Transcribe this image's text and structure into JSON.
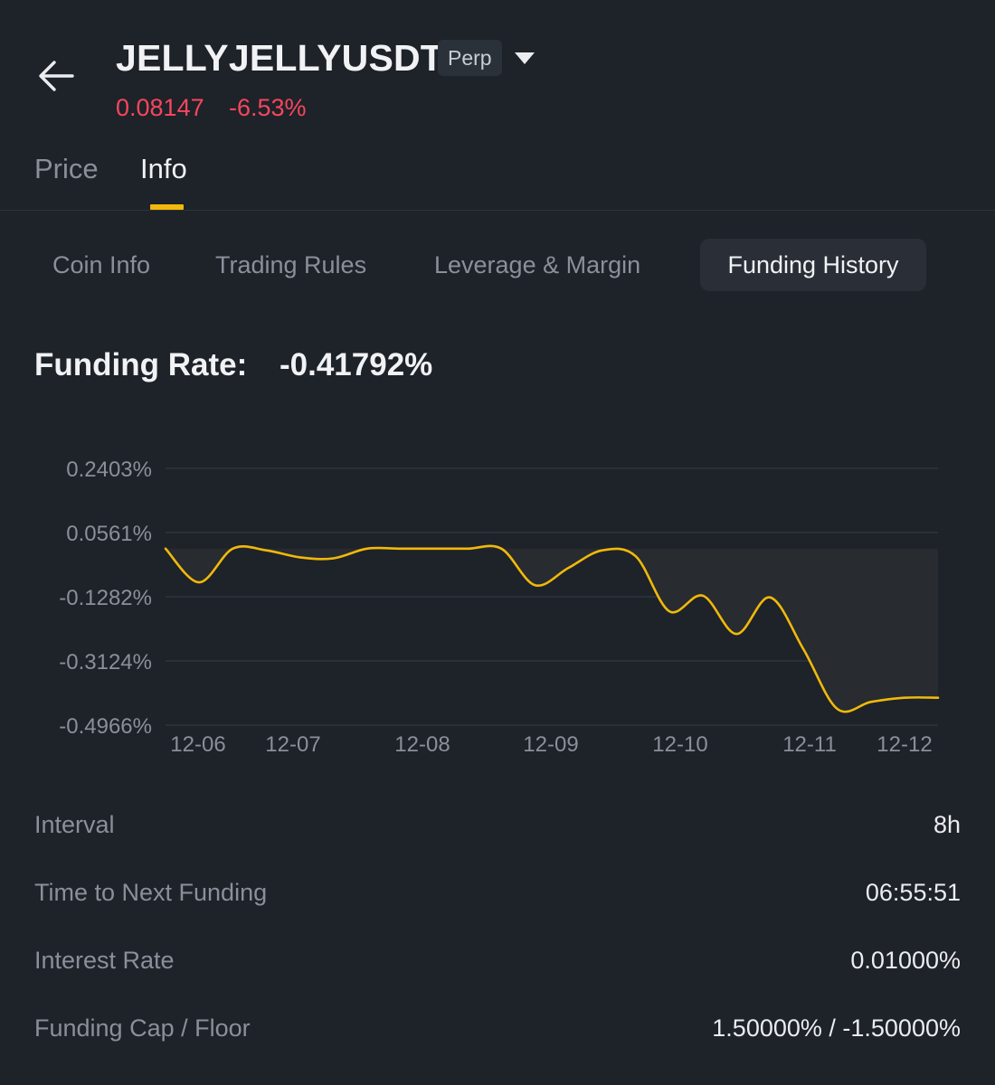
{
  "header": {
    "symbol": "JELLYJELLYUSDT",
    "badge": "Perp",
    "price": "0.08147",
    "change": "-6.53%",
    "price_color": "#f6465d",
    "back_icon": "arrow-left-icon",
    "dropdown_icon": "caret-down-icon"
  },
  "tabs": [
    {
      "label": "Price",
      "active": false
    },
    {
      "label": "Info",
      "active": true
    }
  ],
  "subtabs": [
    {
      "label": "Coin Info",
      "active": false
    },
    {
      "label": "Trading Rules",
      "active": false
    },
    {
      "label": "Leverage & Margin",
      "active": false
    },
    {
      "label": "Funding History",
      "active": true
    }
  ],
  "funding": {
    "label": "Funding Rate:",
    "value": "-0.41792%"
  },
  "chart_data": {
    "type": "line",
    "title": "",
    "xlabel": "",
    "ylabel": "",
    "y_tick_labels": [
      "0.2403%",
      "0.0561%",
      "-0.1282%",
      "-0.3124%",
      "-0.4966%"
    ],
    "x_tick_labels": [
      "12-06",
      "12-07",
      "12-08",
      "12-09",
      "12-10",
      "12-11",
      "12-12"
    ],
    "ylim": [
      -0.4966,
      0.2403
    ],
    "grid": true,
    "line_color": "#f0b90b",
    "series": [
      {
        "x": [
          0,
          1,
          2,
          3,
          4,
          5,
          6,
          7,
          8,
          9,
          10,
          11,
          12,
          13,
          14,
          15,
          16,
          17,
          18,
          19,
          20,
          21,
          22,
          23
        ],
        "values": [
          0.01,
          -0.087,
          0.01,
          0.005,
          -0.015,
          -0.018,
          0.01,
          0.01,
          0.01,
          0.01,
          0.01,
          -0.095,
          -0.045,
          0.005,
          -0.012,
          -0.17,
          -0.125,
          -0.235,
          -0.13,
          -0.28,
          -0.45,
          -0.43,
          -0.4179,
          -0.4179
        ]
      }
    ]
  },
  "info": [
    {
      "label": "Interval",
      "value": "8h"
    },
    {
      "label": "Time to Next Funding",
      "value": "06:55:51"
    },
    {
      "label": "Interest Rate",
      "value": "0.01000%"
    },
    {
      "label": "Funding Cap / Floor",
      "value": "1.50000% / -1.50000%"
    }
  ]
}
